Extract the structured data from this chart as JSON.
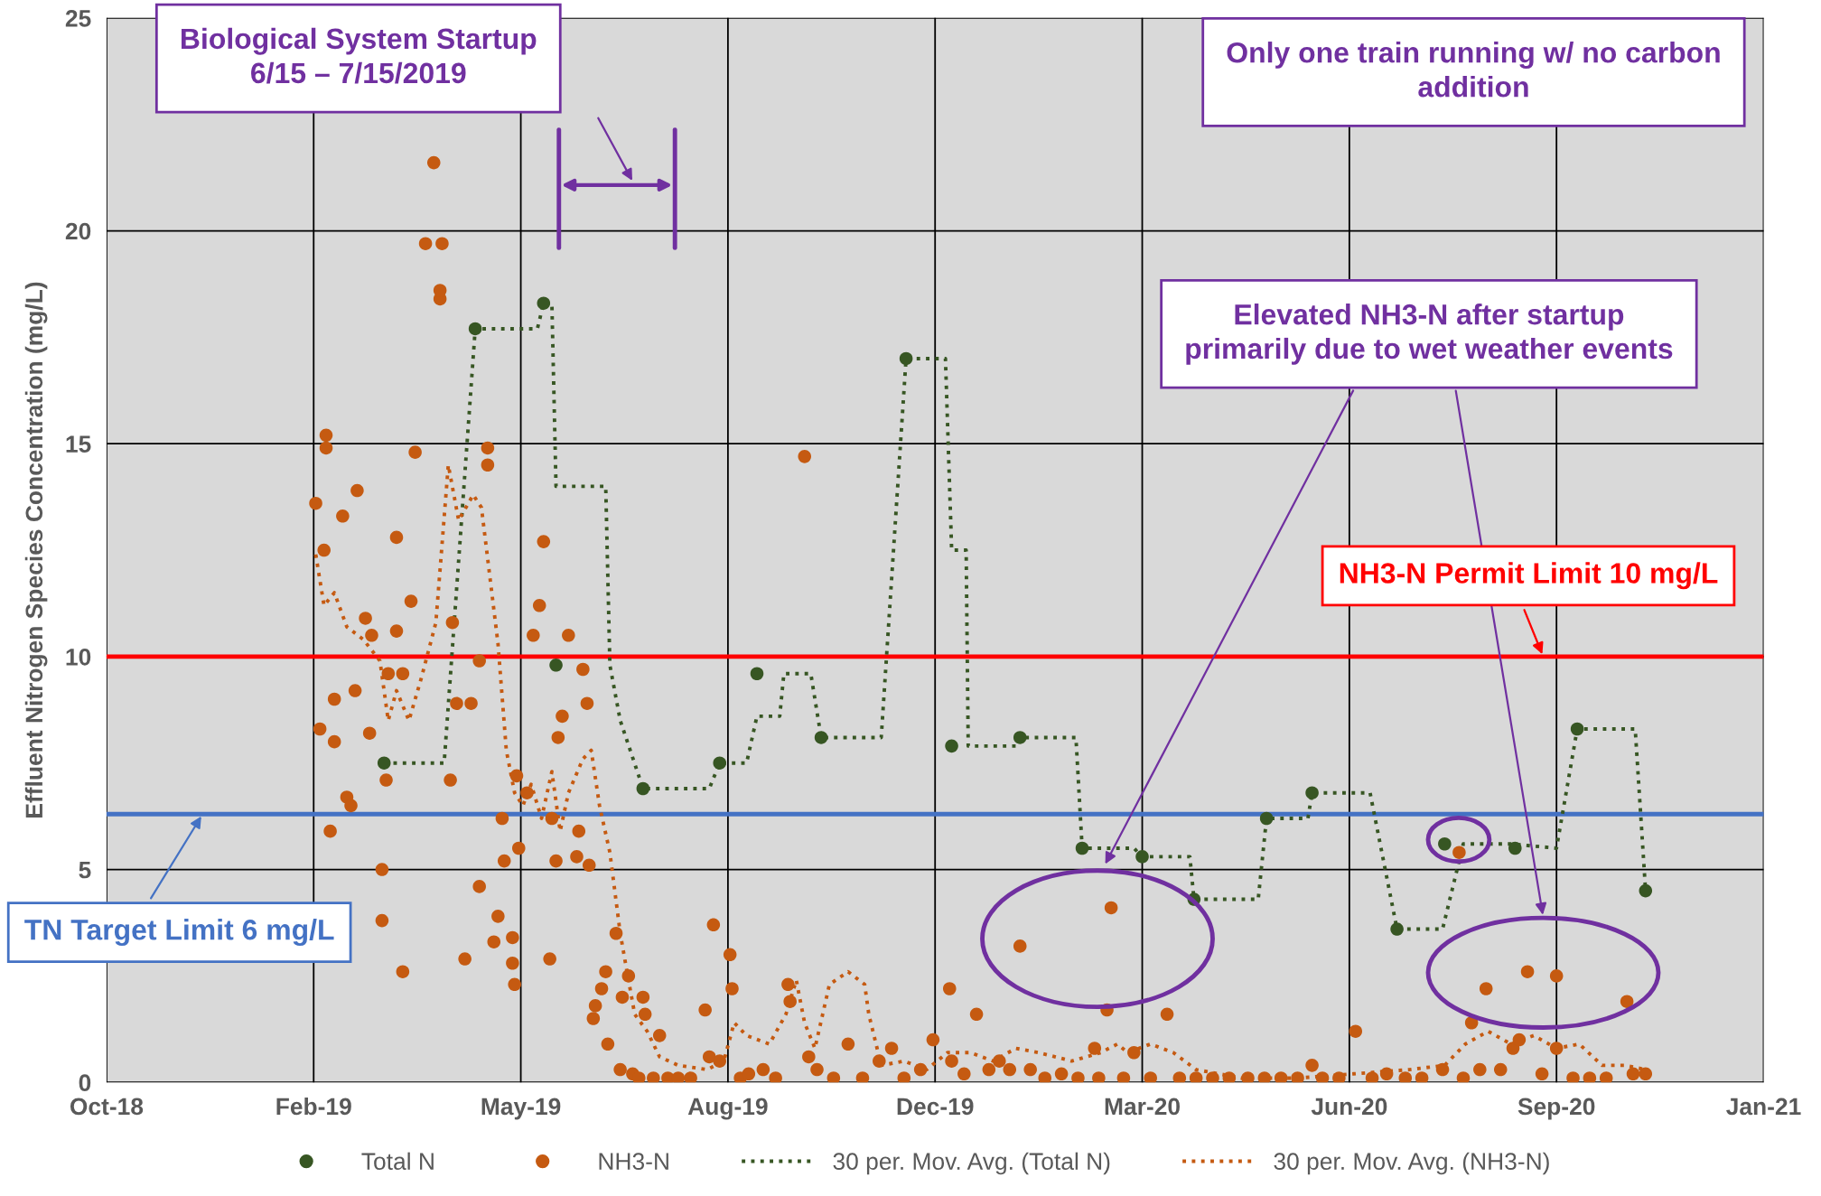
{
  "chart_data": {
    "type": "scatter",
    "ylabel": "Effluent Nitrogen Species Concentration (mg/L)",
    "xlim": [
      "2018-10-27",
      "2021-01-04"
    ],
    "xticks": [
      {
        "value": "2018-10-27",
        "label": "Oct-18"
      },
      {
        "value": "2019-02-04",
        "label": "Feb-19"
      },
      {
        "value": "2019-05-15",
        "label": "May-19"
      },
      {
        "value": "2019-08-23",
        "label": "Aug-19"
      },
      {
        "value": "2019-12-01",
        "label": "Dec-19"
      },
      {
        "value": "2020-03-10",
        "label": "Mar-20"
      },
      {
        "value": "2020-06-18",
        "label": "Jun-20"
      },
      {
        "value": "2020-09-26",
        "label": "Sep-20"
      },
      {
        "value": "2021-01-04",
        "label": "Jan-21"
      }
    ],
    "ylim": [
      0,
      25
    ],
    "yticks": [
      0,
      5,
      10,
      15,
      20,
      25
    ],
    "grid": true,
    "legend": "bottom",
    "marker": "circle",
    "series": [
      {
        "name": "Total N",
        "color": "#375623",
        "x": [
          "2019-03-10",
          "2019-04-23",
          "2019-05-26",
          "2019-06-01",
          "2019-07-13",
          "2019-08-19",
          "2019-09-06",
          "2019-10-07",
          "2019-11-17",
          "2019-12-09",
          "2020-01-11",
          "2020-02-10",
          "2020-03-10",
          "2020-04-04",
          "2020-05-09",
          "2020-05-31",
          "2020-07-11",
          "2020-08-03",
          "2020-09-06",
          "2020-10-06",
          "2020-11-08"
        ],
        "values": [
          7.5,
          17.7,
          18.3,
          9.8,
          6.9,
          7.5,
          9.6,
          8.1,
          17.0,
          7.9,
          8.1,
          5.5,
          5.3,
          4.3,
          6.2,
          6.8,
          3.6,
          5.6,
          5.5,
          8.3,
          4.5
        ]
      },
      {
        "name": "NH3-N",
        "color": "#c55a11",
        "x": [
          "2019-02-05",
          "2019-02-07",
          "2019-02-09",
          "2019-02-10",
          "2019-02-10",
          "2019-02-12",
          "2019-02-14",
          "2019-02-14",
          "2019-02-18",
          "2019-02-20",
          "2019-02-22",
          "2019-02-24",
          "2019-02-25",
          "2019-03-01",
          "2019-03-03",
          "2019-03-04",
          "2019-03-09",
          "2019-03-09",
          "2019-03-11",
          "2019-03-12",
          "2019-03-16",
          "2019-03-16",
          "2019-03-19",
          "2019-03-19",
          "2019-03-23",
          "2019-03-25",
          "2019-03-30",
          "2019-04-03",
          "2019-04-06",
          "2019-04-06",
          "2019-04-07",
          "2019-04-11",
          "2019-04-12",
          "2019-04-14",
          "2019-04-18",
          "2019-04-21",
          "2019-04-25",
          "2019-04-25",
          "2019-04-29",
          "2019-04-29",
          "2019-05-02",
          "2019-05-04",
          "2019-05-06",
          "2019-05-07",
          "2019-05-11",
          "2019-05-11",
          "2019-05-12",
          "2019-05-13",
          "2019-05-14",
          "2019-05-18",
          "2019-05-21",
          "2019-05-24",
          "2019-05-26",
          "2019-05-29",
          "2019-05-30",
          "2019-06-01",
          "2019-06-02",
          "2019-06-04",
          "2019-06-07",
          "2019-06-11",
          "2019-06-12",
          "2019-06-14",
          "2019-06-16",
          "2019-06-17",
          "2019-06-19",
          "2019-06-20",
          "2019-06-23",
          "2019-06-25",
          "2019-06-26",
          "2019-06-30",
          "2019-07-02",
          "2019-07-03",
          "2019-07-06",
          "2019-07-08",
          "2019-07-11",
          "2019-07-13",
          "2019-07-14",
          "2019-07-18",
          "2019-07-21",
          "2019-07-25",
          "2019-07-30",
          "2019-08-05",
          "2019-08-12",
          "2019-08-14",
          "2019-08-16",
          "2019-08-19",
          "2019-08-24",
          "2019-08-25",
          "2019-08-29",
          "2019-09-02",
          "2019-09-09",
          "2019-09-15",
          "2019-09-21",
          "2019-09-22",
          "2019-09-29",
          "2019-10-01",
          "2019-10-05",
          "2019-10-13",
          "2019-10-20",
          "2019-10-27",
          "2019-11-04",
          "2019-11-10",
          "2019-11-16",
          "2019-11-24",
          "2019-11-30",
          "2019-12-08",
          "2019-12-09",
          "2019-12-15",
          "2019-12-21",
          "2019-12-27",
          "2020-01-01",
          "2020-01-06",
          "2020-01-11",
          "2020-01-16",
          "2020-01-23",
          "2020-01-31",
          "2020-02-08",
          "2020-02-16",
          "2020-02-18",
          "2020-02-22",
          "2020-02-24",
          "2020-03-01",
          "2020-03-06",
          "2020-03-14",
          "2020-03-22",
          "2020-03-28",
          "2020-04-05",
          "2020-04-13",
          "2020-04-21",
          "2020-04-30",
          "2020-05-08",
          "2020-05-16",
          "2020-05-24",
          "2020-05-31",
          "2020-06-05",
          "2020-06-13",
          "2020-06-21",
          "2020-06-29",
          "2020-07-06",
          "2020-07-15",
          "2020-07-23",
          "2020-08-02",
          "2020-08-10",
          "2020-08-12",
          "2020-08-16",
          "2020-08-20",
          "2020-08-23",
          "2020-08-30",
          "2020-09-05",
          "2020-09-08",
          "2020-09-12",
          "2020-09-19",
          "2020-09-26",
          "2020-09-26",
          "2020-10-04",
          "2020-10-12",
          "2020-10-20",
          "2020-10-30",
          "2020-11-02",
          "2020-11-08"
        ],
        "values": [
          13.6,
          8.3,
          12.5,
          15.2,
          14.9,
          5.9,
          8.0,
          9.0,
          13.3,
          6.7,
          6.5,
          9.2,
          13.9,
          10.9,
          8.2,
          10.5,
          3.8,
          5.0,
          7.1,
          9.6,
          10.6,
          12.8,
          9.6,
          2.6,
          11.3,
          14.8,
          19.7,
          21.6,
          18.4,
          18.6,
          19.7,
          7.1,
          10.8,
          8.9,
          2.9,
          8.9,
          9.9,
          4.6,
          14.9,
          14.5,
          3.3,
          3.9,
          6.2,
          5.2,
          3.4,
          2.8,
          2.3,
          7.2,
          5.5,
          6.8,
          10.5,
          11.2,
          12.7,
          2.9,
          6.2,
          5.2,
          8.1,
          8.6,
          10.5,
          5.3,
          5.9,
          9.7,
          8.9,
          5.1,
          1.5,
          1.8,
          2.2,
          2.6,
          0.9,
          3.5,
          0.3,
          2.0,
          2.5,
          0.2,
          0.1,
          2.0,
          1.6,
          0.1,
          1.1,
          0.1,
          0.1,
          0.1,
          1.7,
          0.6,
          3.7,
          0.5,
          3.0,
          2.2,
          0.1,
          0.2,
          0.3,
          0.1,
          2.3,
          1.9,
          14.7,
          0.6,
          0.3,
          0.1,
          0.9,
          0.1,
          0.5,
          0.8,
          0.1,
          0.3,
          1.0,
          2.2,
          0.5,
          0.2,
          1.6,
          0.3,
          0.5,
          0.3,
          3.2,
          0.3,
          0.1,
          0.2,
          0.1,
          0.8,
          0.1,
          1.7,
          4.1,
          0.1,
          0.7,
          0.1,
          1.6,
          0.1,
          0.1,
          0.1,
          0.1,
          0.1,
          0.1,
          0.1,
          0.1,
          0.4,
          0.1,
          0.1,
          1.2,
          0.1,
          0.2,
          0.1,
          0.1,
          0.3,
          5.4,
          0.1,
          1.4,
          0.3,
          2.2,
          0.3,
          0.8,
          1.0,
          2.6,
          0.2,
          2.5,
          0.8,
          0.1,
          0.1,
          0.1,
          1.9,
          0.2,
          0.2
        ]
      },
      {
        "name": "30 per. Mov. Avg. (Total N)",
        "type": "line",
        "marker": "none",
        "line_style": "dotted",
        "color": "#375623",
        "x": [
          "2019-03-10",
          "2019-04-08",
          "2019-04-23",
          "2019-05-23",
          "2019-05-26",
          "2019-05-30",
          "2019-06-01",
          "2019-06-25",
          "2019-06-27",
          "2019-07-02",
          "2019-07-13",
          "2019-08-14",
          "2019-08-19",
          "2019-09-01",
          "2019-09-06",
          "2019-09-17",
          "2019-09-19",
          "2019-10-02",
          "2019-10-07",
          "2019-11-05",
          "2019-11-17",
          "2019-12-06",
          "2019-12-09",
          "2019-12-16",
          "2019-12-17",
          "2020-01-09",
          "2020-01-11",
          "2020-02-07",
          "2020-02-10",
          "2020-03-06",
          "2020-03-10",
          "2020-04-02",
          "2020-04-04",
          "2020-05-05",
          "2020-05-09",
          "2020-05-29",
          "2020-05-31",
          "2020-06-28",
          "2020-07-11",
          "2020-08-02",
          "2020-08-08",
          "2020-08-12",
          "2020-09-04",
          "2020-09-26",
          "2020-10-06",
          "2020-11-03",
          "2020-11-08"
        ],
        "values": [
          7.5,
          7.5,
          17.7,
          17.7,
          18.3,
          18.3,
          14.0,
          14.0,
          9.8,
          8.5,
          6.9,
          6.9,
          7.5,
          7.5,
          8.6,
          8.6,
          9.6,
          9.6,
          8.1,
          8.1,
          17.0,
          17.0,
          12.5,
          12.5,
          7.9,
          7.9,
          8.1,
          8.1,
          5.5,
          5.5,
          5.3,
          5.3,
          4.3,
          4.3,
          6.2,
          6.2,
          6.8,
          6.8,
          3.6,
          3.6,
          4.8,
          5.6,
          5.6,
          5.5,
          8.3,
          8.3,
          4.5
        ]
      },
      {
        "name": "30 per. Mov. Avg. (NH3-N)",
        "type": "line",
        "marker": "none",
        "line_style": "dotted",
        "color": "#c55a11",
        "x": [
          "2019-02-05",
          "2019-02-09",
          "2019-02-14",
          "2019-02-20",
          "2019-02-28",
          "2019-03-08",
          "2019-03-12",
          "2019-03-16",
          "2019-03-22",
          "2019-03-28",
          "2019-04-04",
          "2019-04-10",
          "2019-04-15",
          "2019-04-22",
          "2019-04-26",
          "2019-04-30",
          "2019-05-04",
          "2019-05-08",
          "2019-05-12",
          "2019-05-16",
          "2019-05-20",
          "2019-05-25",
          "2019-05-30",
          "2019-06-03",
          "2019-06-07",
          "2019-06-14",
          "2019-06-18",
          "2019-06-22",
          "2019-06-27",
          "2019-07-02",
          "2019-07-06",
          "2019-07-09",
          "2019-07-15",
          "2019-07-21",
          "2019-07-30",
          "2019-08-13",
          "2019-08-21",
          "2019-08-26",
          "2019-09-01",
          "2019-09-12",
          "2019-09-20",
          "2019-09-25",
          "2019-09-29",
          "2019-10-04",
          "2019-10-11",
          "2019-10-20",
          "2019-10-28",
          "2019-10-30",
          "2019-11-05",
          "2019-11-16",
          "2019-11-27",
          "2019-12-07",
          "2019-12-18",
          "2019-12-29",
          "2020-01-09",
          "2020-01-20",
          "2020-02-05",
          "2020-02-19",
          "2020-02-27",
          "2020-03-03",
          "2020-03-14",
          "2020-03-25",
          "2020-04-05",
          "2020-04-27",
          "2020-05-24",
          "2020-06-20",
          "2020-07-17",
          "2020-08-03",
          "2020-08-13",
          "2020-08-24",
          "2020-09-04",
          "2020-09-15",
          "2020-09-26",
          "2020-10-07",
          "2020-10-18",
          "2020-10-29",
          "2020-11-08"
        ],
        "values": [
          12.4,
          11.2,
          11.5,
          10.7,
          10.4,
          9.9,
          8.5,
          9.2,
          8.5,
          9.5,
          10.8,
          14.5,
          13.2,
          13.8,
          13.5,
          11.9,
          10.3,
          7.8,
          6.8,
          6.5,
          7.0,
          6.2,
          7.3,
          5.9,
          6.8,
          7.6,
          7.8,
          6.5,
          5.4,
          3.5,
          2.4,
          1.6,
          1.2,
          0.6,
          0.4,
          0.3,
          0.5,
          1.4,
          1.1,
          0.9,
          1.6,
          2.4,
          1.4,
          0.8,
          2.3,
          2.6,
          2.3,
          1.6,
          0.4,
          0.5,
          0.3,
          0.7,
          0.7,
          0.5,
          0.8,
          0.7,
          0.5,
          0.7,
          0.9,
          0.7,
          0.9,
          0.7,
          0.3,
          0.1,
          0.1,
          0.2,
          0.3,
          0.4,
          0.9,
          1.2,
          0.9,
          1.1,
          0.8,
          0.9,
          0.4,
          0.4,
          0.3
        ]
      }
    ],
    "ref_lines": [
      {
        "axis": "y",
        "value": 10,
        "label": "NH3-N Permit Limit 10 mg/L",
        "color": "#ff0000"
      },
      {
        "axis": "y",
        "value": 6.3,
        "label": "TN Target Limit 6 mg/L",
        "color": "#4472c4"
      }
    ],
    "annotations": [
      "Biological System Startup\n6/15 – 7/15/2019",
      "Only one train running w/ no carbon\naddition",
      "Elevated NH3-N after startup\nprimarily due to wet weather events"
    ]
  }
}
